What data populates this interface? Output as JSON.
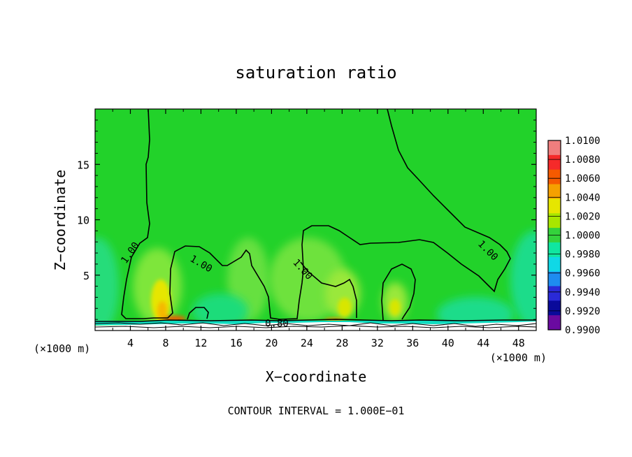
{
  "chart_data": {
    "type": "heatmap",
    "title": "saturation ratio",
    "xlabel": "X−coordinate",
    "ylabel": "Z−coordinate",
    "x_unit_label": "(×1000 m)",
    "y_unit_label": "(×1000 m)",
    "xlim": [
      0,
      50
    ],
    "ylim": [
      0,
      20
    ],
    "x_ticks": [
      4,
      8,
      12,
      16,
      20,
      24,
      28,
      32,
      36,
      40,
      44,
      48
    ],
    "y_ticks": [
      5,
      10,
      15
    ],
    "footer": "CONTOUR INTERVAL = 1.000E−01",
    "contour_labels": [
      {
        "text": "1.00",
        "x": 4.0,
        "y": 7.0
      },
      {
        "text": "1.00",
        "x": 12.0,
        "y": 6.0
      },
      {
        "text": "1.00",
        "x": 23.5,
        "y": 5.5
      },
      {
        "text": "1.00",
        "x": 44.5,
        "y": 7.2
      },
      {
        "text": "0.80",
        "x": 20.6,
        "y": 0.6
      }
    ],
    "colorbar": {
      "levels": [
        "1.0100",
        "1.0080",
        "1.0060",
        "1.0040",
        "1.0020",
        "1.0000",
        "0.9980",
        "0.9960",
        "0.9940",
        "0.9920",
        "0.9900"
      ],
      "colors": [
        "#f07e7e",
        "#f52a2a",
        "#f55a00",
        "#f5a000",
        "#e6e600",
        "#a8e600",
        "#34d23c",
        "#10e6a0",
        "#10d8e6",
        "#1e8cf0",
        "#2a2ad8",
        "#0a0a9a",
        "#6a0aa0"
      ]
    },
    "colors": {
      "background_field": "#22d22a",
      "upper_field": "#28d830",
      "near_saturated": "#10dcc0",
      "subsaturated": "#0a0a9a"
    }
  }
}
